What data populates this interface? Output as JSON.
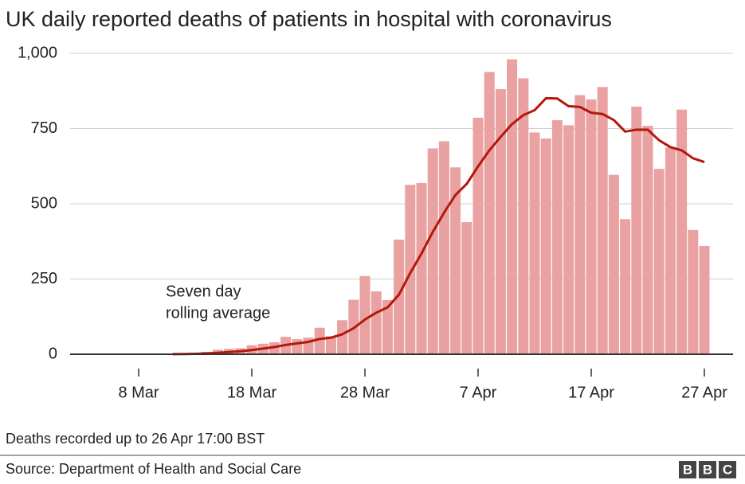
{
  "chart_data": {
    "type": "bar",
    "title": "UK daily reported deaths of patients in hospital with coronavirus",
    "categories": [
      null,
      null,
      null,
      null,
      null,
      null,
      "8 Mar",
      null,
      null,
      null,
      null,
      null,
      null,
      null,
      null,
      null,
      "18 Mar",
      null,
      null,
      null,
      null,
      null,
      null,
      null,
      null,
      null,
      "28 Mar",
      null,
      null,
      null,
      null,
      null,
      null,
      null,
      null,
      null,
      "7 Apr",
      null,
      null,
      null,
      null,
      null,
      null,
      null,
      null,
      null,
      "17 Apr",
      null,
      null,
      null,
      null,
      null,
      null,
      null,
      null,
      null,
      "27 Apr"
    ],
    "series": [
      {
        "type": "bar",
        "color": "#e9a1a1",
        "values": [
          0,
          0,
          0,
          0,
          0,
          0,
          0,
          0,
          0,
          2,
          3,
          5,
          8,
          15,
          18,
          20,
          30,
          35,
          40,
          58,
          50,
          55,
          88,
          60,
          113,
          181,
          260,
          209,
          180,
          381,
          563,
          569,
          684,
          708,
          621,
          439,
          786,
          938,
          881,
          980,
          917,
          737,
          717,
          778,
          761,
          861,
          847,
          888,
          596,
          449,
          823,
          759,
          616,
          687,
          813,
          413,
          360
        ]
      },
      {
        "type": "line",
        "name": [
          "Seven day",
          "rolling average"
        ],
        "color": "#b3180b",
        "values": [
          null,
          null,
          null,
          null,
          null,
          null,
          null,
          null,
          null,
          0.3,
          0.7,
          1.4,
          2.6,
          4.7,
          7.3,
          10.1,
          14.1,
          18.7,
          23.7,
          30.9,
          35.9,
          41.1,
          50.9,
          55.1,
          66.3,
          86.4,
          115.3,
          138,
          155.9,
          197.7,
          269.6,
          334.7,
          406.6,
          470.6,
          529.4,
          566.4,
          624.3,
          677.9,
          722.4,
          764.7,
          794.6,
          811.1,
          850.9,
          849.7,
          824.4,
          821.6,
          802.6,
          798.4,
          778.3,
          740,
          746.4,
          746.1,
          711.1,
          688.3,
          677.6,
          651.4,
          638.7
        ]
      }
    ],
    "ylim": [
      0,
      1000
    ],
    "yticks": [
      0,
      250,
      500,
      750,
      {
        "value": 1000,
        "label": "1,000"
      }
    ],
    "grid": true,
    "note": "Deaths recorded up to 26 Apr 17:00 BST",
    "source": "Source: Department of Health and Social Care",
    "logo": [
      "B",
      "B",
      "C"
    ]
  }
}
